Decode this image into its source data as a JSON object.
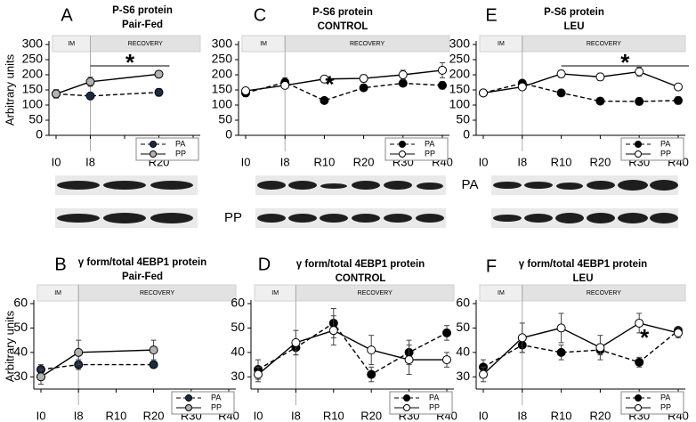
{
  "chart_data": [
    {
      "type": "line",
      "panel": "A",
      "title": "P-S6 protein",
      "subtitle": "Pair-Fed",
      "ylabel": "Arbitrary units",
      "phases": [
        "IM",
        "RECOVERY"
      ],
      "categories": [
        "I0",
        "I8",
        null,
        "R20",
        null
      ],
      "ylim": [
        0,
        300
      ],
      "yticks": [
        0,
        50,
        100,
        150,
        200,
        250,
        300
      ],
      "legend": "lower right",
      "significance": {
        "label": "*",
        "from": "I8",
        "to": "R20"
      },
      "series": [
        {
          "name": "PA",
          "color": "#000000",
          "marker": "#1c2b44",
          "dash": true,
          "x": [
            "I0",
            "I8",
            "R20"
          ],
          "values": [
            137,
            130,
            142
          ],
          "errors": [
            8,
            6,
            12
          ]
        },
        {
          "name": "PP",
          "color": "#000000",
          "marker": "#b3b3b3",
          "dash": false,
          "x": [
            "I0",
            "I8",
            "R20"
          ],
          "values": [
            137,
            177,
            202
          ],
          "errors": [
            14,
            15,
            10
          ]
        }
      ]
    },
    {
      "type": "line",
      "panel": "C",
      "title": "P-S6 protein",
      "subtitle": "CONTROL",
      "phases": [
        "IM",
        "RECOVERY"
      ],
      "categories": [
        "I0",
        "I8",
        "R10",
        "R20",
        "R30",
        "R40"
      ],
      "ylim": [
        0,
        300
      ],
      "yticks": [
        0,
        50,
        100,
        150,
        200,
        250,
        300
      ],
      "legend": "lower right",
      "significance": {
        "label": "*",
        "at": "R10"
      },
      "series": [
        {
          "name": "PA",
          "color": "#000000",
          "marker": "#000000",
          "dash": true,
          "values": [
            140,
            175,
            115,
            157,
            172,
            165
          ],
          "errors": [
            12,
            15,
            10,
            8,
            8,
            12
          ]
        },
        {
          "name": "PP",
          "color": "#000000",
          "marker": "#ffffff",
          "dash": false,
          "values": [
            147,
            165,
            186,
            188,
            200,
            215
          ],
          "errors": [
            8,
            10,
            10,
            12,
            15,
            25
          ]
        }
      ]
    },
    {
      "type": "line",
      "panel": "E",
      "title": "P-S6 protein",
      "subtitle": "LEU",
      "phases": [
        "IM",
        "RECOVERY"
      ],
      "categories": [
        "I0",
        "I8",
        "R10",
        "R20",
        "R30",
        "R40"
      ],
      "ylim": [
        0,
        300
      ],
      "yticks": [
        0,
        50,
        100,
        150,
        200,
        250,
        300
      ],
      "legend": "lower right",
      "significance": {
        "label": "*",
        "from": "R10",
        "to": "R40"
      },
      "series": [
        {
          "name": "PA",
          "color": "#000000",
          "marker": "#000000",
          "dash": true,
          "values": [
            140,
            172,
            140,
            113,
            112,
            115
          ],
          "errors": [
            10,
            8,
            10,
            10,
            12,
            12
          ]
        },
        {
          "name": "PP",
          "color": "#000000",
          "marker": "#ffffff",
          "dash": false,
          "values": [
            140,
            160,
            203,
            193,
            210,
            160
          ],
          "errors": [
            8,
            10,
            12,
            12,
            15,
            10
          ]
        }
      ]
    },
    {
      "type": "line",
      "panel": "B",
      "title": "γ form/total 4EBP1 protein",
      "subtitle": "Pair-Fed",
      "ylabel": "Arbitrary units",
      "phases": [
        "IM",
        "RECOVERY"
      ],
      "categories": [
        "I0",
        "I8",
        "R10",
        "R20",
        "R30",
        "R40"
      ],
      "ylim": [
        25,
        60
      ],
      "yticks": [
        30,
        40,
        50,
        60
      ],
      "legend": "lower right",
      "series": [
        {
          "name": "PA",
          "color": "#000000",
          "marker": "#1c2b44",
          "dash": true,
          "x": [
            "I0",
            "I8",
            "R20"
          ],
          "values": [
            33,
            35,
            35
          ],
          "errors": [
            2,
            2,
            1
          ]
        },
        {
          "name": "PP",
          "color": "#000000",
          "marker": "#b3b3b3",
          "dash": false,
          "x": [
            "I0",
            "I8",
            "R20"
          ],
          "values": [
            30,
            40,
            41
          ],
          "errors": [
            3,
            5,
            4
          ]
        }
      ]
    },
    {
      "type": "line",
      "panel": "D",
      "title": "γ form/total 4EBP1 protein",
      "subtitle": "CONTROL",
      "phases": [
        "IM",
        "RECOVERY"
      ],
      "categories": [
        "I0",
        "I8",
        "R10",
        "R20",
        "R30",
        "R40"
      ],
      "ylim": [
        25,
        60
      ],
      "yticks": [
        30,
        40,
        50,
        60
      ],
      "legend": "lower right",
      "series": [
        {
          "name": "PA",
          "color": "#000000",
          "marker": "#000000",
          "dash": true,
          "values": [
            33,
            42,
            52,
            31,
            40,
            48
          ],
          "errors": [
            4,
            3,
            6,
            3,
            5,
            3
          ]
        },
        {
          "name": "PP",
          "color": "#000000",
          "marker": "#ffffff",
          "dash": false,
          "values": [
            31,
            44,
            49,
            41,
            37,
            37
          ],
          "errors": [
            3,
            5,
            6,
            6,
            6,
            3
          ]
        }
      ]
    },
    {
      "type": "line",
      "panel": "F",
      "title": "γ form/total 4EBP1 protein",
      "subtitle": "LEU",
      "phases": [
        "IM",
        "RECOVERY"
      ],
      "categories": [
        "I0",
        "I8",
        "R10",
        "R20",
        "R30",
        "R40"
      ],
      "ylim": [
        25,
        60
      ],
      "yticks": [
        30,
        40,
        50,
        60
      ],
      "legend": "lower right",
      "significance": {
        "label": "*",
        "at": "R30"
      },
      "series": [
        {
          "name": "PA",
          "color": "#000000",
          "marker": "#000000",
          "dash": true,
          "values": [
            34,
            43,
            40,
            41,
            36,
            49
          ],
          "errors": [
            3,
            3,
            3,
            2,
            2,
            1
          ]
        },
        {
          "name": "PP",
          "color": "#000000",
          "marker": "#ffffff",
          "dash": false,
          "values": [
            31,
            46,
            50,
            42,
            52,
            48
          ],
          "errors": [
            3,
            6,
            6,
            5,
            4,
            2
          ]
        }
      ]
    }
  ],
  "blots": {
    "labels": [
      "PA",
      "PP"
    ]
  }
}
